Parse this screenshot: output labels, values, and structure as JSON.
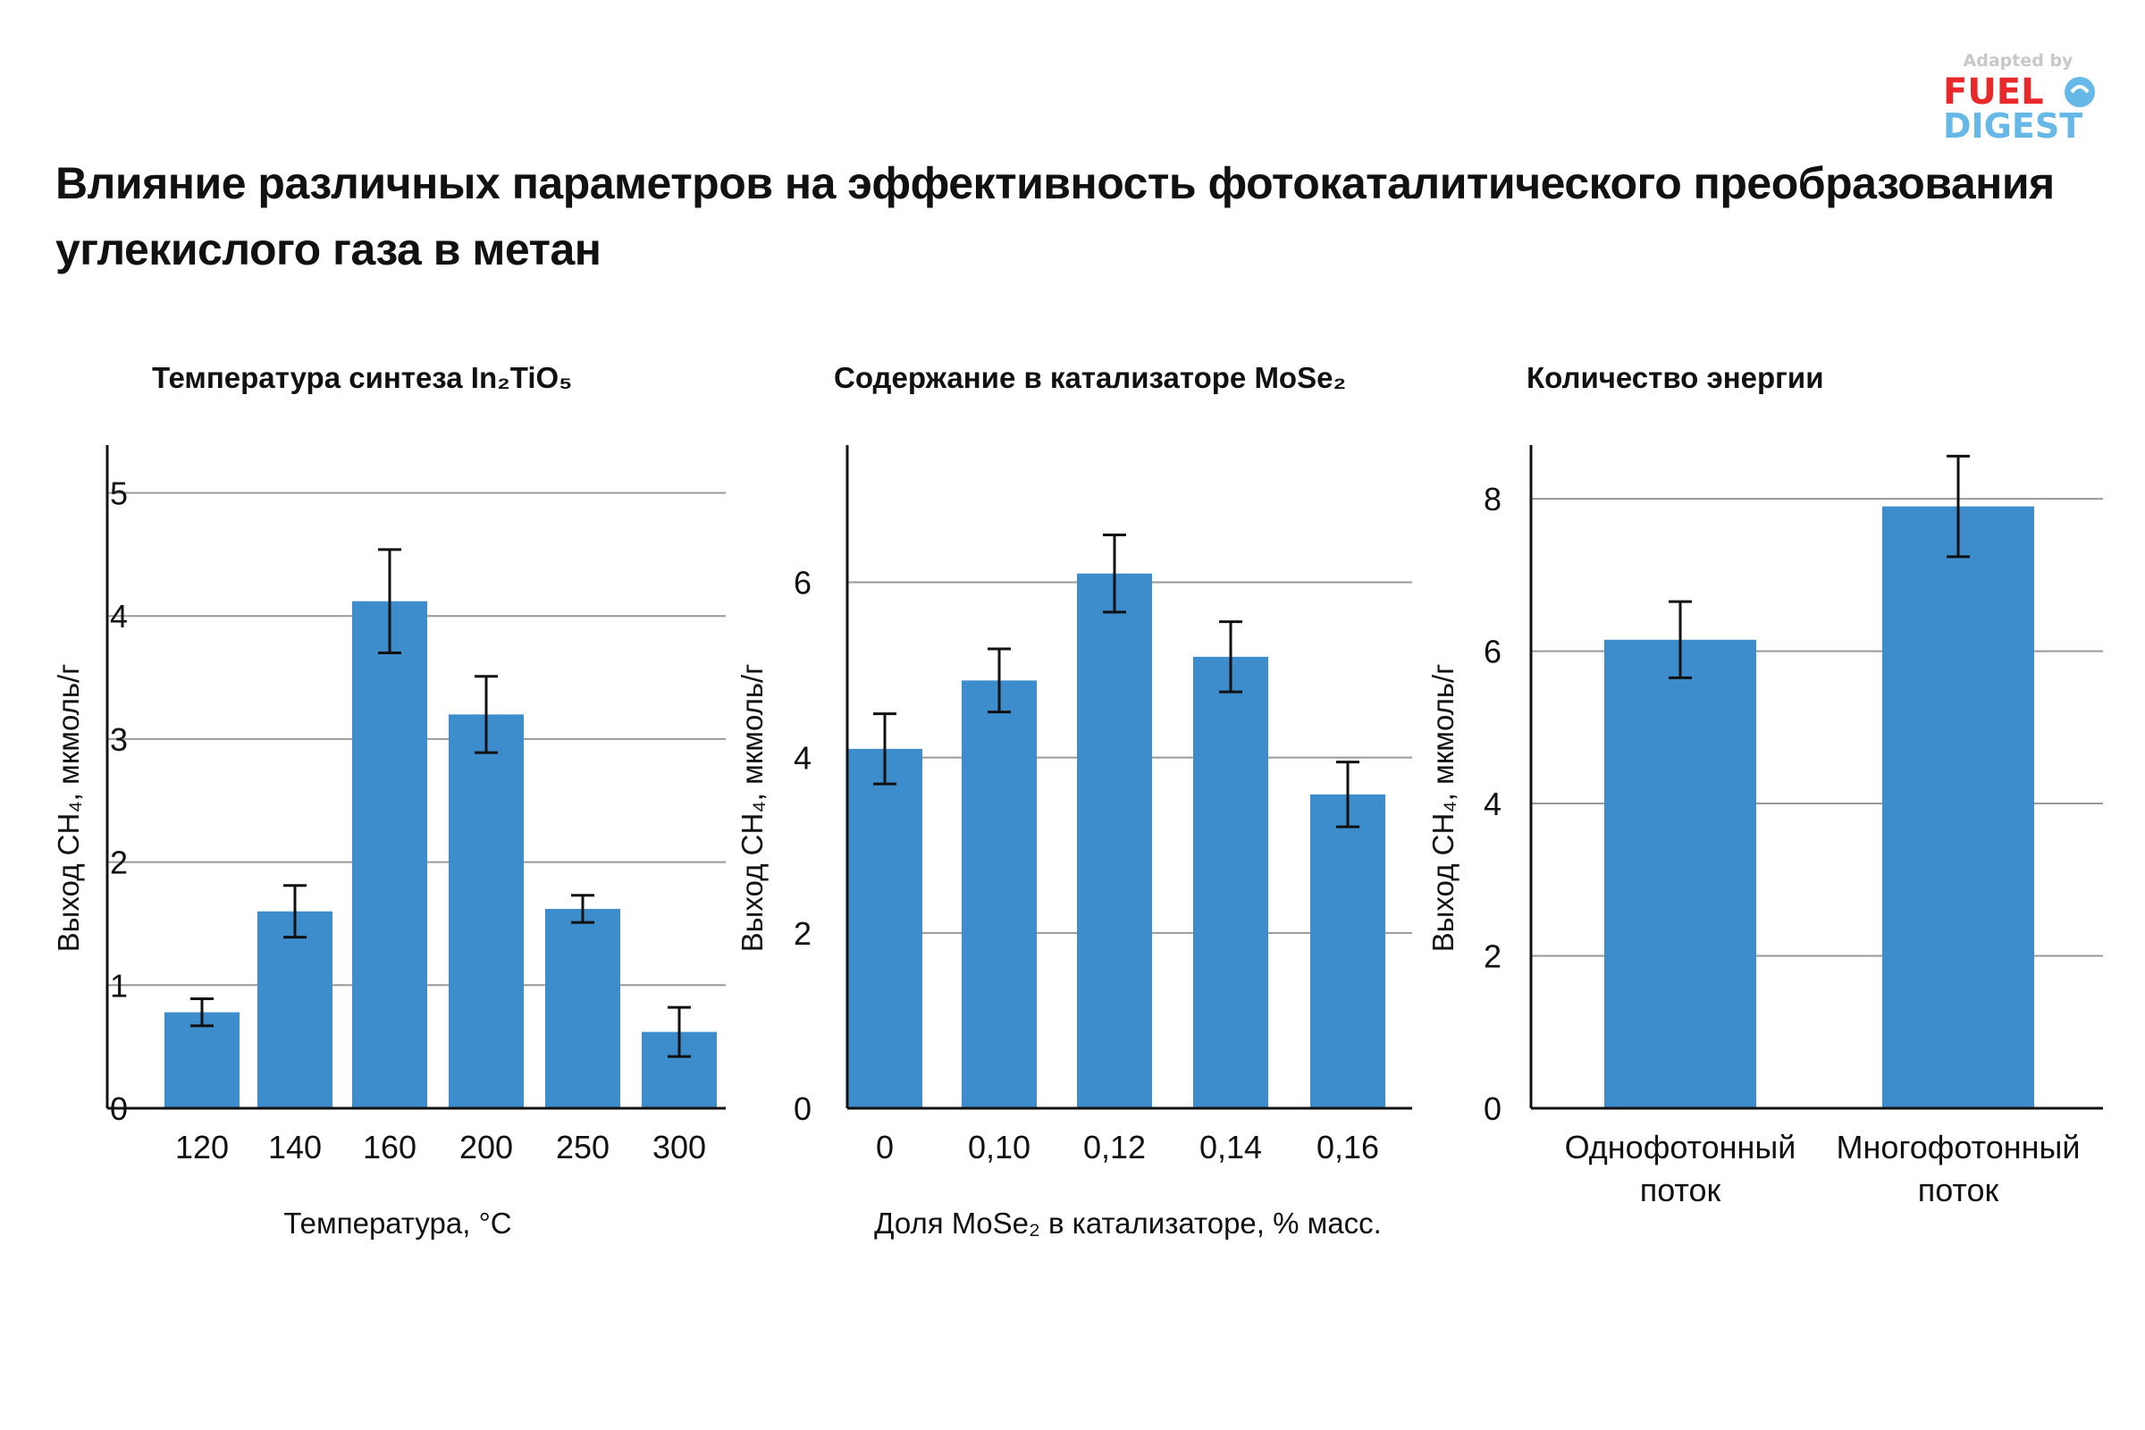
{
  "title": "Влияние различных параметров на эффективность фотокаталитического преобразования углекислого газа в метан",
  "logo": {
    "line1": "Adapted by",
    "line2": "FUEL",
    "line3": "DIGEST",
    "icon": "fuel-drop-icon"
  },
  "colors": {
    "bar": "#3d8ccb",
    "grid": "#999999",
    "axis": "#111111",
    "logo_red": "#e8282b",
    "logo_blue": "#66b8e6",
    "logo_gray": "#c8c8c8"
  },
  "chart_data": [
    {
      "type": "bar",
      "title": "Температура синтеза In₂TiO₅",
      "categories": [
        "120",
        "140",
        "160",
        "200",
        "250",
        "300"
      ],
      "values": [
        0.78,
        1.6,
        4.12,
        3.2,
        1.62,
        0.62
      ],
      "errors": [
        0.11,
        0.21,
        0.42,
        0.31,
        0.11,
        0.2
      ],
      "xlabel": "Температура, °C",
      "ylabel": "Выход CH₄, мкмоль/г",
      "ylim": [
        0,
        5.2
      ],
      "yticks": [
        0,
        1,
        2,
        3,
        4,
        5
      ],
      "grid": true
    },
    {
      "type": "bar",
      "title": "Содержание в катализаторе MoSe₂",
      "categories": [
        "0",
        "0,10",
        "0,12",
        "0,14",
        "0,16"
      ],
      "values": [
        4.1,
        4.88,
        6.1,
        5.15,
        3.58
      ],
      "errors": [
        0.4,
        0.36,
        0.44,
        0.4,
        0.37
      ],
      "xlabel": "Доля MoSe₂ в катализаторе, % масс.",
      "ylabel": "Выход CH₄, мкмоль/г",
      "ylim": [
        0,
        7.3
      ],
      "yticks": [
        0,
        2,
        4,
        6
      ],
      "grid": true
    },
    {
      "type": "bar",
      "title": "Количество энергии",
      "categories": [
        [
          "Однофотонный",
          "поток"
        ],
        [
          "Многофотонный",
          "поток"
        ]
      ],
      "values": [
        6.15,
        7.9
      ],
      "errors": [
        0.5,
        0.66
      ],
      "xlabel": "",
      "ylabel": "Выход CH₄, мкмоль/г",
      "ylim": [
        0,
        8.4
      ],
      "yticks": [
        0,
        2,
        4,
        6,
        8
      ],
      "grid": true
    }
  ]
}
